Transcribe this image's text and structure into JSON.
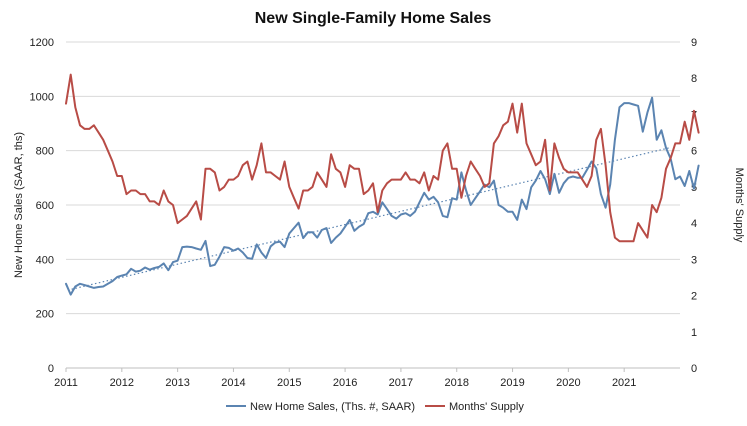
{
  "chart_data": {
    "type": "line",
    "title": "New Single-Family Home Sales",
    "ylabel_left": "New Home Sales (SAAR, ths)",
    "ylabel_right": "Months' Supply",
    "x_range": [
      2011,
      2022
    ],
    "x_ticks": [
      2011,
      2012,
      2013,
      2014,
      2015,
      2016,
      2017,
      2018,
      2019,
      2020,
      2021
    ],
    "y_left_range": [
      0,
      1200
    ],
    "y_left_ticks": [
      0,
      200,
      400,
      600,
      800,
      1000,
      1200
    ],
    "y_right_range": [
      0,
      9
    ],
    "y_right_ticks": [
      0,
      1,
      2,
      3,
      4,
      5,
      6,
      7,
      8,
      9
    ],
    "grid": "horizontal",
    "legend_position": "bottom",
    "series": [
      {
        "name": "New Home Sales, (Ths. #, SAAR)",
        "axis": "left",
        "color": "#5b84b1",
        "values": [
          310,
          270,
          300,
          310,
          305,
          300,
          295,
          298,
          300,
          310,
          320,
          335,
          340,
          345,
          365,
          355,
          358,
          370,
          362,
          368,
          372,
          385,
          360,
          390,
          395,
          445,
          447,
          445,
          440,
          435,
          468,
          375,
          380,
          410,
          445,
          442,
          432,
          440,
          425,
          405,
          402,
          455,
          425,
          405,
          448,
          462,
          465,
          445,
          495,
          515,
          535,
          478,
          500,
          500,
          480,
          508,
          515,
          460,
          480,
          495,
          520,
          545,
          505,
          520,
          530,
          570,
          575,
          565,
          610,
          585,
          560,
          550,
          565,
          570,
          560,
          575,
          610,
          645,
          620,
          630,
          610,
          560,
          555,
          625,
          620,
          720,
          655,
          600,
          625,
          650,
          675,
          665,
          690,
          600,
          590,
          575,
          575,
          545,
          620,
          585,
          665,
          690,
          725,
          695,
          640,
          715,
          645,
          680,
          700,
          705,
          700,
          700,
          730,
          760,
          735,
          640,
          590,
          675,
          840,
          960,
          975,
          975,
          970,
          965,
          870,
          940,
          995,
          840,
          875,
          810,
          770,
          695,
          705,
          670,
          725,
          660,
          745
        ]
      },
      {
        "name": "Months' Supply",
        "axis": "right",
        "color": "#b84c46",
        "values": [
          7.3,
          8.1,
          7.2,
          6.7,
          6.6,
          6.6,
          6.7,
          6.5,
          6.3,
          6.0,
          5.7,
          5.3,
          5.3,
          4.8,
          4.9,
          4.9,
          4.8,
          4.8,
          4.6,
          4.6,
          4.5,
          4.9,
          4.6,
          4.5,
          4.0,
          4.1,
          4.2,
          4.4,
          4.6,
          4.1,
          5.5,
          5.5,
          5.4,
          4.9,
          5.0,
          5.2,
          5.2,
          5.3,
          5.6,
          5.7,
          5.2,
          5.6,
          6.2,
          5.4,
          5.4,
          5.3,
          5.2,
          5.7,
          5.0,
          4.7,
          4.4,
          4.9,
          4.9,
          5.0,
          5.4,
          5.2,
          5.0,
          5.9,
          5.5,
          5.4,
          5.0,
          5.6,
          5.5,
          5.5,
          4.8,
          4.9,
          5.1,
          4.3,
          4.9,
          5.1,
          5.2,
          5.2,
          5.2,
          5.4,
          5.2,
          5.2,
          5.1,
          5.4,
          4.9,
          5.3,
          5.2,
          6.0,
          6.2,
          5.5,
          5.5,
          4.7,
          5.3,
          5.7,
          5.5,
          5.3,
          5.0,
          5.1,
          6.2,
          6.4,
          6.7,
          6.8,
          7.3,
          6.5,
          7.3,
          6.2,
          5.9,
          5.6,
          5.7,
          6.3,
          4.9,
          6.2,
          5.8,
          5.5,
          5.4,
          5.4,
          5.4,
          5.2,
          5.0,
          5.3,
          6.3,
          6.6,
          5.6,
          4.3,
          3.6,
          3.5,
          3.5,
          3.5,
          3.5,
          4.0,
          3.8,
          3.6,
          4.5,
          4.3,
          4.7,
          5.5,
          5.8,
          6.2,
          6.2,
          6.8,
          6.3,
          7.1,
          6.5
        ]
      }
    ],
    "trendline": {
      "series": "New Home Sales, (Ths. #, SAAR)",
      "type": "linear",
      "style": "dotted",
      "color": "#5b84b1",
      "start": [
        2011.1,
        290
      ],
      "end": [
        2021.8,
        810
      ]
    }
  }
}
